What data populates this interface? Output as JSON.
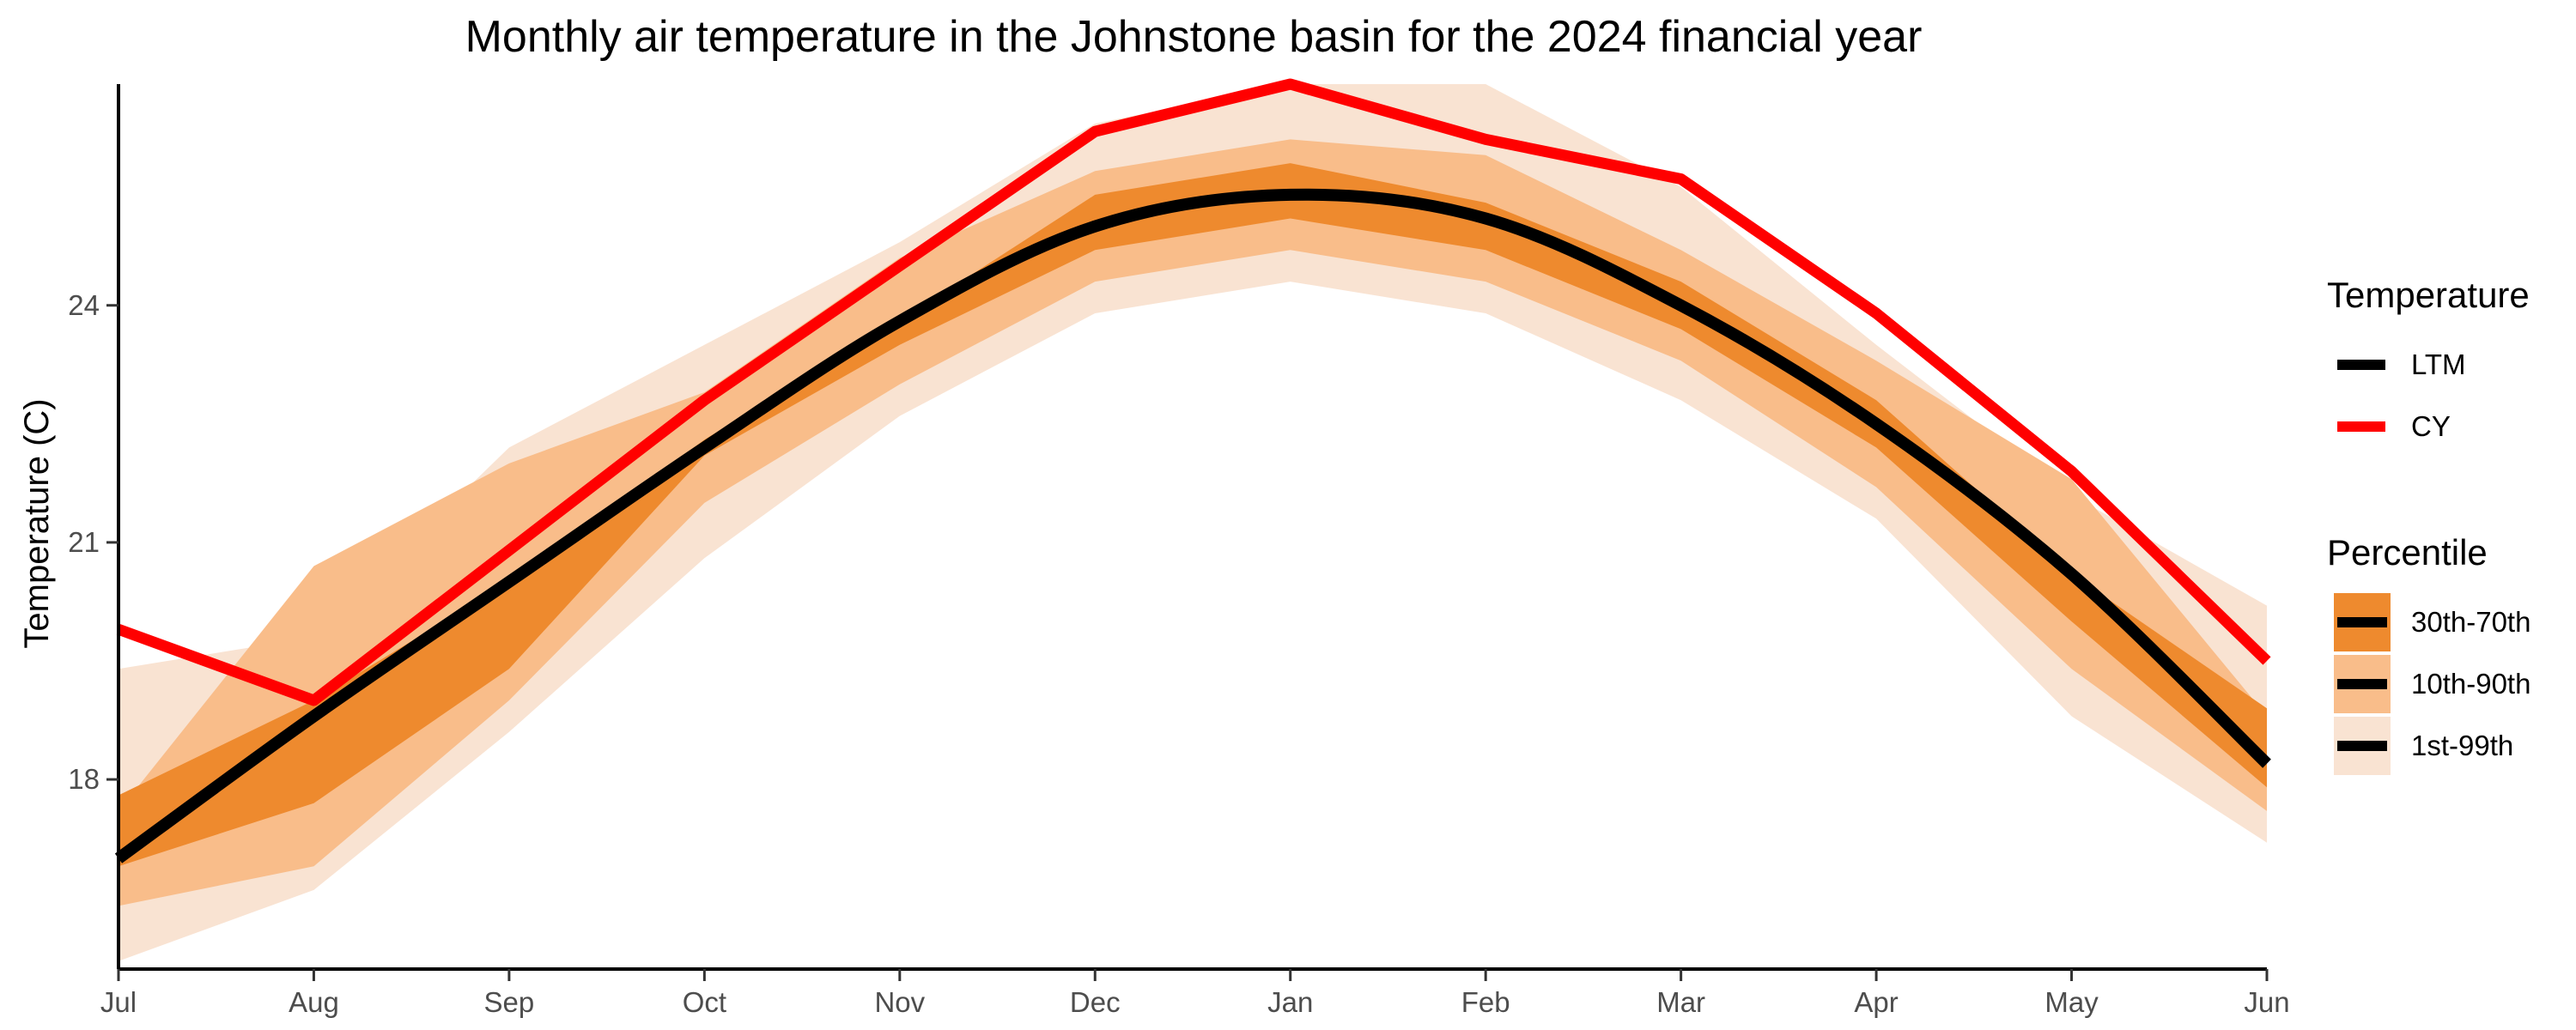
{
  "chart_data": {
    "type": "line",
    "title": "Monthly air temperature in the Johnstone basin for the 2024 financial year",
    "xlabel": "",
    "ylabel": "Temperature (C)",
    "categories": [
      "Jul",
      "Aug",
      "Sep",
      "Oct",
      "Nov",
      "Dec",
      "Jan",
      "Feb",
      "Mar",
      "Apr",
      "May",
      "Jun"
    ],
    "ylim": [
      15.6,
      26.8
    ],
    "yticks": [
      18,
      21,
      24
    ],
    "grid": false,
    "series": [
      {
        "name": "LTM",
        "color": "#000000",
        "values": [
          17.0,
          18.8,
          20.5,
          22.2,
          23.8,
          25.0,
          25.4,
          25.1,
          24.0,
          22.5,
          20.6,
          18.2
        ]
      },
      {
        "name": "CY",
        "color": "#ff0000",
        "values": [
          19.9,
          19.0,
          20.9,
          22.8,
          24.5,
          26.2,
          26.8,
          26.1,
          25.6,
          23.9,
          21.9,
          19.5
        ]
      }
    ],
    "bands": [
      {
        "name": "1st-99th",
        "color": "#f9e3d2",
        "lower": [
          15.7,
          16.6,
          18.6,
          20.8,
          22.6,
          23.9,
          24.3,
          23.9,
          22.8,
          21.3,
          18.8,
          17.2
        ],
        "upper": [
          19.4,
          19.8,
          22.2,
          23.5,
          24.8,
          26.3,
          26.8,
          26.8,
          25.5,
          23.5,
          21.6,
          20.2
        ]
      },
      {
        "name": "10th-90th",
        "color": "#f9bd8a",
        "lower": [
          16.4,
          16.9,
          19.0,
          21.5,
          23.0,
          24.3,
          24.7,
          24.3,
          23.3,
          21.7,
          19.4,
          17.6
        ]
      },
      {
        "name": "30th-70th",
        "color": "#ee8a2e",
        "lower": [
          16.9,
          17.7,
          19.4,
          22.1,
          23.5,
          24.7,
          25.1,
          24.7,
          23.7,
          22.2,
          20.0,
          17.9
        ],
        "upper": [
          17.8,
          19.0,
          20.5,
          22.3,
          23.8,
          25.4,
          25.8,
          25.3,
          24.3,
          22.8,
          20.6,
          18.9
        ]
      }
    ],
    "legend": {
      "placement": "right",
      "temperature_title": "Temperature",
      "percentile_title": "Percentile",
      "temperature_items": [
        "LTM",
        "CY"
      ],
      "percentile_items": [
        "30th-70th",
        "10th-90th",
        "1st-99th"
      ]
    }
  }
}
